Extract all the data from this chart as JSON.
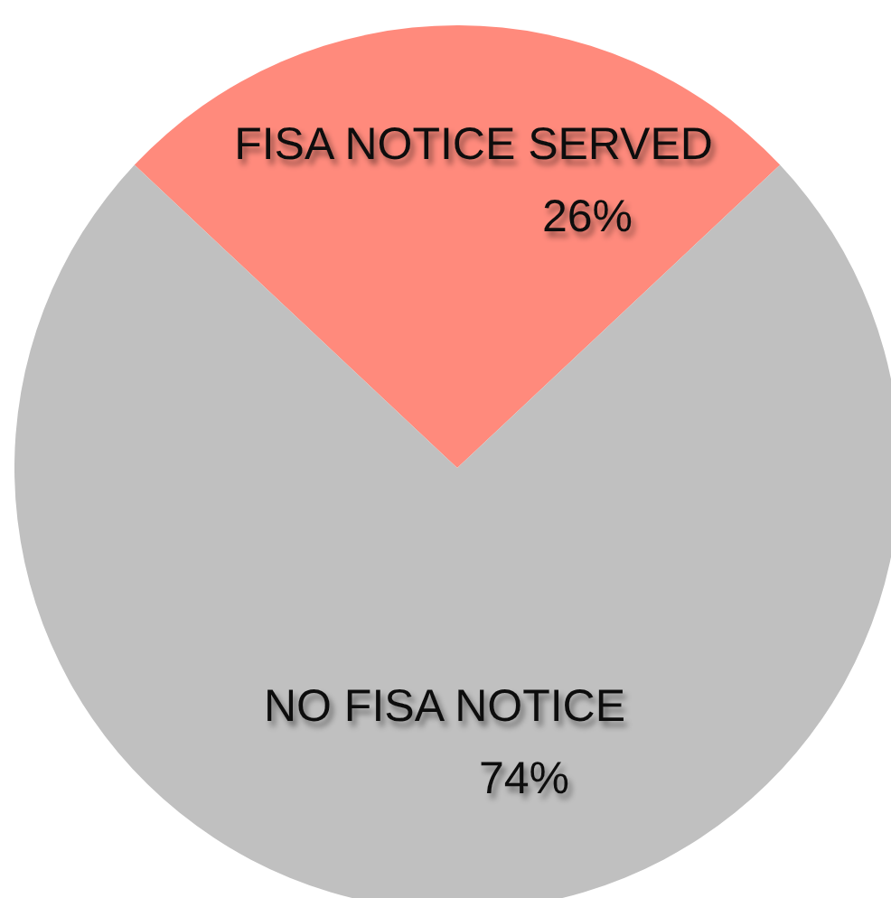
{
  "chart_data": {
    "type": "pie",
    "categories": [
      "FISA NOTICE SERVED",
      "NO FISA NOTICE"
    ],
    "values": [
      26,
      74
    ],
    "colors": [
      "#ff8a7c",
      "#c0c0c0"
    ],
    "value_labels": [
      "26%",
      "74%"
    ]
  }
}
